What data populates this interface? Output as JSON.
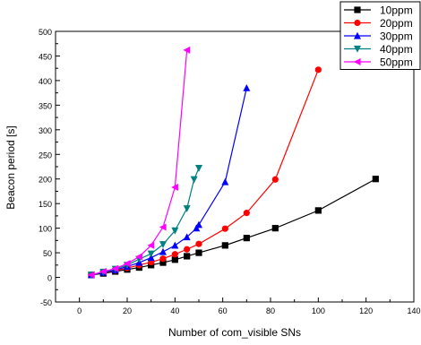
{
  "chart_data": {
    "type": "line",
    "xlabel": "Number of com_visible SNs",
    "ylabel": "Beacon period [s]",
    "xlim": [
      -10,
      140
    ],
    "ylim": [
      -50,
      500
    ],
    "xticks": [
      0,
      20,
      40,
      60,
      80,
      100,
      120,
      140
    ],
    "yticks": [
      -50,
      0,
      50,
      100,
      150,
      200,
      250,
      300,
      350,
      400,
      450,
      500
    ],
    "grid": false,
    "legend_position": "top-right",
    "series": [
      {
        "name": "10ppm",
        "color": "#000000",
        "marker": "square",
        "x": [
          5,
          10,
          15,
          20,
          25,
          30,
          35,
          40,
          45,
          50,
          61,
          70,
          82,
          100,
          124
        ],
        "y": [
          5,
          8,
          12,
          16,
          20,
          25,
          30,
          36,
          43,
          50,
          65,
          80,
          100,
          136,
          200
        ]
      },
      {
        "name": "20ppm",
        "color": "#ff0000",
        "marker": "circle",
        "x": [
          5,
          10,
          15,
          20,
          25,
          30,
          35,
          40,
          45,
          50,
          61,
          70,
          82,
          100
        ],
        "y": [
          5,
          10,
          14,
          19,
          25,
          31,
          38,
          47,
          57,
          68,
          99,
          131,
          199,
          422
        ]
      },
      {
        "name": "30ppm",
        "color": "#0000ff",
        "marker": "triangle-up",
        "x": [
          5,
          10,
          15,
          20,
          25,
          30,
          35,
          40,
          45,
          49,
          50,
          61,
          70
        ],
        "y": [
          5,
          10,
          15,
          22,
          30,
          40,
          52,
          65,
          82,
          100,
          107,
          194,
          385
        ]
      },
      {
        "name": "40ppm",
        "color": "#008080",
        "marker": "triangle-down",
        "x": [
          5,
          10,
          15,
          20,
          25,
          30,
          35,
          40,
          45,
          48,
          50
        ],
        "y": [
          5,
          11,
          17,
          25,
          37,
          48,
          67,
          95,
          140,
          199,
          222
        ]
      },
      {
        "name": "50ppm",
        "color": "#ff00ff",
        "marker": "triangle-left",
        "x": [
          5,
          10,
          15,
          20,
          25,
          30,
          35,
          40,
          45
        ],
        "y": [
          5,
          12,
          18,
          28,
          42,
          65,
          102,
          183,
          462
        ]
      }
    ]
  }
}
